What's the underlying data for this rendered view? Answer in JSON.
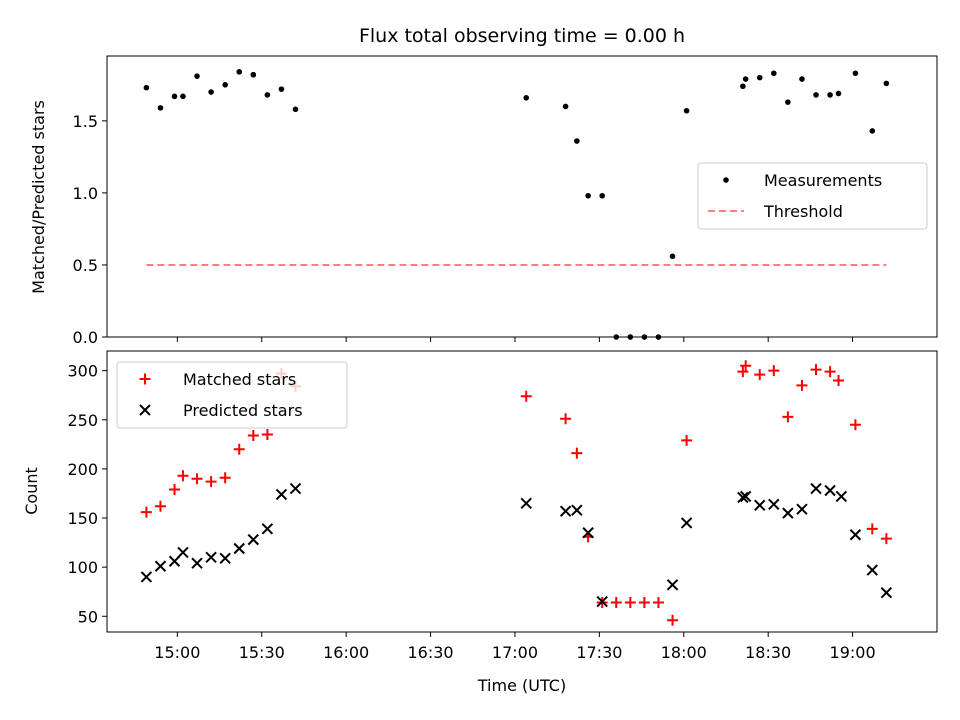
{
  "chart_data": {
    "title": "Flux total observing time = 0.00 h",
    "xlabel": "Time (UTC)",
    "x_ticks": [
      "15:00",
      "15:30",
      "16:00",
      "16:30",
      "17:00",
      "17:30",
      "18:00",
      "18:30",
      "19:00"
    ],
    "xlim": [
      "14:35",
      "19:30"
    ],
    "panels": [
      {
        "type": "scatter",
        "ylabel": "Matched/Predicted stars",
        "ylim": [
          0,
          1.95
        ],
        "y_ticks": [
          0.0,
          0.5,
          1.0,
          1.5
        ],
        "y_tick_labels": [
          "0.0",
          "0.5",
          "1.0",
          "1.5"
        ],
        "legend_position": "center-right",
        "series": [
          {
            "name": "Measurements",
            "marker": "dot",
            "color": "#000000",
            "points": [
              [
                "14:49",
                1.73
              ],
              [
                "14:54",
                1.59
              ],
              [
                "14:59",
                1.67
              ],
              [
                "15:02",
                1.67
              ],
              [
                "15:07",
                1.81
              ],
              [
                "15:12",
                1.7
              ],
              [
                "15:17",
                1.75
              ],
              [
                "15:22",
                1.84
              ],
              [
                "15:27",
                1.82
              ],
              [
                "15:32",
                1.68
              ],
              [
                "15:37",
                1.72
              ],
              [
                "15:42",
                1.58
              ],
              [
                "17:04",
                1.66
              ],
              [
                "17:18",
                1.6
              ],
              [
                "17:22",
                1.36
              ],
              [
                "17:26",
                0.98
              ],
              [
                "17:31",
                0.98
              ],
              [
                "17:36",
                0.0
              ],
              [
                "17:41",
                0.0
              ],
              [
                "17:46",
                0.0
              ],
              [
                "17:51",
                0.0
              ],
              [
                "17:56",
                0.56
              ],
              [
                "18:01",
                1.57
              ],
              [
                "18:21",
                1.74
              ],
              [
                "18:22",
                1.79
              ],
              [
                "18:27",
                1.8
              ],
              [
                "18:32",
                1.83
              ],
              [
                "18:37",
                1.63
              ],
              [
                "18:42",
                1.79
              ],
              [
                "18:47",
                1.68
              ],
              [
                "18:52",
                1.68
              ],
              [
                "18:55",
                1.69
              ],
              [
                "19:01",
                1.83
              ],
              [
                "19:07",
                1.43
              ],
              [
                "19:12",
                1.76
              ]
            ]
          },
          {
            "name": "Threshold",
            "marker": "dashed-line",
            "color": "#ff7f7f",
            "points": [
              [
                "14:49",
                0.5
              ],
              [
                "19:12",
                0.5
              ]
            ]
          }
        ]
      },
      {
        "type": "scatter",
        "ylabel": "Count",
        "ylim": [
          34,
          320
        ],
        "y_ticks": [
          50,
          100,
          150,
          200,
          250,
          300
        ],
        "y_tick_labels": [
          "50",
          "100",
          "150",
          "200",
          "250",
          "300"
        ],
        "legend_position": "upper-left",
        "series": [
          {
            "name": "Matched stars",
            "marker": "plus",
            "color": "#ff0000",
            "points": [
              [
                "14:49",
                156
              ],
              [
                "14:54",
                162
              ],
              [
                "14:59",
                179
              ],
              [
                "15:02",
                193
              ],
              [
                "15:07",
                190
              ],
              [
                "15:12",
                187
              ],
              [
                "15:17",
                191
              ],
              [
                "15:22",
                220
              ],
              [
                "15:27",
                234
              ],
              [
                "15:32",
                235
              ],
              [
                "15:37",
                297
              ],
              [
                "15:42",
                284
              ],
              [
                "17:04",
                274
              ],
              [
                "17:18",
                251
              ],
              [
                "17:22",
                216
              ],
              [
                "17:26",
                131
              ],
              [
                "17:31",
                64
              ],
              [
                "17:36",
                64
              ],
              [
                "17:41",
                64
              ],
              [
                "17:46",
                64
              ],
              [
                "17:51",
                64
              ],
              [
                "17:56",
                46
              ],
              [
                "18:01",
                229
              ],
              [
                "18:21",
                299
              ],
              [
                "18:22",
                305
              ],
              [
                "18:27",
                296
              ],
              [
                "18:32",
                300
              ],
              [
                "18:37",
                253
              ],
              [
                "18:42",
                285
              ],
              [
                "18:47",
                301
              ],
              [
                "18:52",
                299
              ],
              [
                "18:55",
                290
              ],
              [
                "19:01",
                245
              ],
              [
                "19:07",
                139
              ],
              [
                "19:12",
                129
              ]
            ]
          },
          {
            "name": "Predicted stars",
            "marker": "x",
            "color": "#000000",
            "points": [
              [
                "14:49",
                90
              ],
              [
                "14:54",
                101
              ],
              [
                "14:59",
                106
              ],
              [
                "15:02",
                115
              ],
              [
                "15:07",
                104
              ],
              [
                "15:12",
                110
              ],
              [
                "15:17",
                109
              ],
              [
                "15:22",
                119
              ],
              [
                "15:27",
                128
              ],
              [
                "15:32",
                139
              ],
              [
                "15:37",
                174
              ],
              [
                "15:42",
                180
              ],
              [
                "17:04",
                165
              ],
              [
                "17:18",
                157
              ],
              [
                "17:22",
                158
              ],
              [
                "17:26",
                135
              ],
              [
                "17:31",
                65
              ],
              [
                "18:56",
                172
              ],
              [
                "17:56",
                82
              ],
              [
                "18:01",
                145
              ],
              [
                "18:21",
                171
              ],
              [
                "18:22",
                172
              ],
              [
                "18:27",
                163
              ],
              [
                "18:32",
                164
              ],
              [
                "18:37",
                155
              ],
              [
                "18:42",
                159
              ],
              [
                "18:47",
                180
              ],
              [
                "18:52",
                178
              ],
              [
                "19:01",
                133
              ],
              [
                "19:07",
                97
              ],
              [
                "19:12",
                74
              ]
            ]
          }
        ]
      }
    ]
  }
}
